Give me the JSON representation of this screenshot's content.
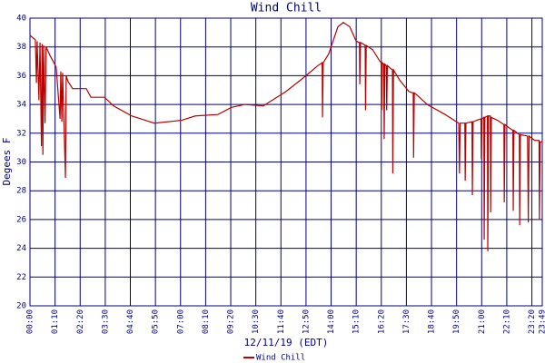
{
  "chart_data": {
    "type": "line",
    "title": "Wind Chill",
    "x_label": "12/11/19 (EDT)",
    "y_label": "Degees F",
    "xlim": [
      0,
      1429
    ],
    "ylim": [
      20,
      40
    ],
    "yticks": [
      20,
      22,
      24,
      26,
      28,
      30,
      32,
      34,
      36,
      38,
      40
    ],
    "xticks": [
      {
        "value": 0,
        "label": "00:00"
      },
      {
        "value": 70,
        "label": "01:10"
      },
      {
        "value": 140,
        "label": "02:20"
      },
      {
        "value": 210,
        "label": "03:30"
      },
      {
        "value": 280,
        "label": "04:40"
      },
      {
        "value": 350,
        "label": "05:50"
      },
      {
        "value": 420,
        "label": "07:00"
      },
      {
        "value": 490,
        "label": "08:10"
      },
      {
        "value": 560,
        "label": "09:20"
      },
      {
        "value": 630,
        "label": "10:30"
      },
      {
        "value": 700,
        "label": "11:40"
      },
      {
        "value": 770,
        "label": "12:50"
      },
      {
        "value": 840,
        "label": "14:00"
      },
      {
        "value": 910,
        "label": "15:10"
      },
      {
        "value": 980,
        "label": "16:20"
      },
      {
        "value": 1050,
        "label": "17:30"
      },
      {
        "value": 1120,
        "label": "18:40"
      },
      {
        "value": 1190,
        "label": "19:50"
      },
      {
        "value": 1260,
        "label": "21:00"
      },
      {
        "value": 1330,
        "label": "22:10"
      },
      {
        "value": 1400,
        "label": "23:20"
      },
      {
        "value": 1429,
        "label": "23:49"
      }
    ],
    "grid": true,
    "legend": "bottom",
    "x": [
      0,
      15,
      18,
      20,
      25,
      28,
      32,
      34,
      36,
      38,
      42,
      45,
      56,
      73,
      84,
      86,
      89,
      91,
      99,
      101,
      106,
      119,
      157,
      170,
      208,
      233,
      284,
      322,
      347,
      423,
      461,
      524,
      562,
      600,
      651,
      676,
      714,
      765,
      803,
      815,
      816,
      818,
      833,
      859,
      874,
      892,
      910,
      919,
      920,
      922,
      930,
      935,
      936,
      938,
      956,
      976,
      980,
      981,
      983,
      987,
      988,
      990,
      994,
      995,
      997,
      1006,
      1011,
      1012,
      1014,
      1031,
      1057,
      1069,
      1070,
      1072,
      1082,
      1108,
      1158,
      1196,
      1198,
      1200,
      1213,
      1214,
      1216,
      1233,
      1234,
      1236,
      1246,
      1258,
      1259,
      1261,
      1266,
      1267,
      1269,
      1276,
      1277,
      1279,
      1284,
      1285,
      1287,
      1304,
      1322,
      1323,
      1325,
      1335,
      1347,
      1348,
      1350,
      1365,
      1366,
      1368,
      1388,
      1390,
      1392,
      1408,
      1420,
      1421,
      1423,
      1429
    ],
    "series": [
      {
        "name": "Wind Chill",
        "color": "#bb0000",
        "values": [
          38.8,
          38.5,
          35.5,
          38.4,
          34.3,
          38.3,
          31.1,
          38.2,
          30.5,
          38.1,
          32.7,
          38.0,
          37.4,
          36.6,
          33.0,
          36.3,
          32.8,
          36.2,
          28.9,
          36.0,
          35.6,
          35.1,
          35.1,
          34.5,
          34.5,
          33.9,
          33.2,
          32.9,
          32.7,
          32.9,
          33.2,
          33.3,
          33.8,
          34.0,
          33.9,
          34.3,
          34.9,
          35.9,
          36.7,
          36.9,
          33.1,
          36.9,
          37.5,
          39.4,
          39.7,
          39.4,
          38.4,
          38.3,
          35.4,
          38.3,
          38.2,
          38.1,
          33.6,
          38.1,
          37.8,
          37.0,
          36.9,
          33.6,
          36.9,
          36.8,
          31.6,
          36.8,
          36.7,
          33.6,
          36.7,
          36.5,
          36.4,
          29.2,
          36.4,
          35.7,
          34.9,
          34.8,
          30.3,
          34.8,
          34.6,
          34.0,
          33.3,
          32.7,
          29.2,
          32.7,
          32.7,
          28.7,
          32.7,
          32.8,
          27.7,
          32.8,
          32.9,
          33.0,
          30.2,
          33.0,
          33.1,
          24.6,
          33.1,
          33.2,
          23.8,
          33.2,
          33.2,
          26.5,
          33.1,
          32.9,
          32.6,
          27.2,
          32.6,
          32.4,
          32.2,
          26.6,
          32.2,
          31.9,
          25.6,
          31.9,
          31.8,
          25.8,
          31.8,
          31.5,
          31.5,
          26.0,
          31.4,
          31.4
        ]
      }
    ]
  }
}
